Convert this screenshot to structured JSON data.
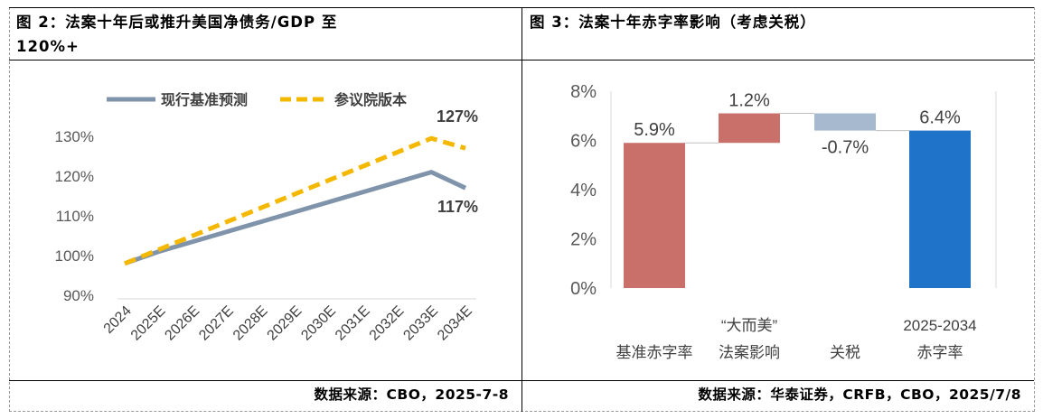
{
  "left": {
    "title_line1": "图 2：法案十年后或推升美国净债务/GDP 至",
    "title_line2": "120%+",
    "source": "数据来源：CBO，2025-7-8"
  },
  "right": {
    "title": "图 3：法案十年赤字率影响（考虑关税）",
    "source": "数据来源：华泰证券，CRFB，CBO，2025/7/8"
  },
  "colors": {
    "baseline": "#7f93ab",
    "senate": "#f5b800",
    "waterfall_up": "#c9706a",
    "waterfall_down": "#a7b9ce",
    "waterfall_total": "#1f73c9"
  },
  "chart_data": [
    {
      "type": "line",
      "title": "",
      "x": [
        "2024",
        "2025E",
        "2026E",
        "2027E",
        "2028E",
        "2029E",
        "2030E",
        "2031E",
        "2032E",
        "2033E",
        "2034E"
      ],
      "yticks": [
        "90%",
        "100%",
        "110%",
        "120%",
        "130%"
      ],
      "ylim": [
        90,
        130
      ],
      "grid": false,
      "legend": "top",
      "series": [
        {
          "name": "现行基准预测",
          "color": "#7f93ab",
          "values": [
            98,
            101,
            103.5,
            106,
            108.5,
            111,
            113.5,
            116,
            118.5,
            121,
            117
          ],
          "end_label": "117%"
        },
        {
          "name": "参议院版本",
          "color": "#f5b800",
          "dashed": true,
          "values": [
            98,
            101.5,
            105,
            108.5,
            112,
            115.5,
            119,
            122.5,
            126,
            129.5,
            127
          ],
          "end_label": "127%"
        }
      ]
    },
    {
      "type": "bar",
      "subtype": "waterfall",
      "title": "",
      "categories": [
        [
          "基准赤字率"
        ],
        [
          "“大而美”",
          "法案影响"
        ],
        [
          "关税"
        ],
        [
          "2025-2034",
          "赤字率"
        ]
      ],
      "values": [
        5.9,
        1.2,
        -0.7,
        6.4
      ],
      "labels": [
        "5.9%",
        "1.2%",
        "-0.7%",
        "6.4%"
      ],
      "kinds": [
        "total",
        "up",
        "down",
        "total"
      ],
      "yticks": [
        "0%",
        "2%",
        "4%",
        "6%",
        "8%"
      ],
      "ylim": [
        0,
        8
      ],
      "grid": false
    }
  ]
}
